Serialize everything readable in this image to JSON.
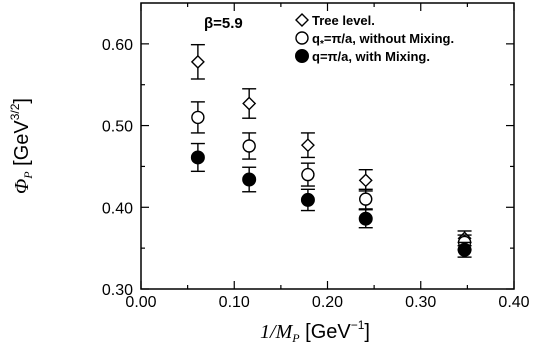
{
  "chart_data": {
    "type": "scatter",
    "title": "",
    "annotation": "β=5.9",
    "xlabel": {
      "main": "1/M",
      "sub": "P",
      "unit_pre": " [GeV",
      "unit_sup": "−1",
      "unit_post": "]"
    },
    "ylabel": {
      "main": "Φ",
      "sub": "P",
      "unit_pre": " [GeV",
      "unit_sup": "3/2",
      "unit_post": "]"
    },
    "xlim": [
      0.0,
      0.4
    ],
    "ylim": [
      0.3,
      0.65
    ],
    "x_ticks": [
      0.0,
      0.1,
      0.2,
      0.3,
      0.4
    ],
    "x_tick_labels": [
      "0.00",
      "0.10",
      "0.20",
      "0.30",
      "0.40"
    ],
    "y_ticks": [
      0.3,
      0.4,
      0.5,
      0.6
    ],
    "y_tick_labels": [
      "0.30",
      "0.40",
      "0.50",
      "0.60"
    ],
    "grid": false,
    "legend_position": "top-right",
    "series": [
      {
        "name": "Tree level.",
        "marker": "open-diamond",
        "points": [
          {
            "x": 0.061,
            "y": 0.578,
            "err": 0.021
          },
          {
            "x": 0.116,
            "y": 0.527,
            "err": 0.018
          },
          {
            "x": 0.179,
            "y": 0.476,
            "err": 0.015
          },
          {
            "x": 0.241,
            "y": 0.433,
            "err": 0.013
          },
          {
            "x": 0.347,
            "y": 0.362,
            "err": 0.009
          }
        ]
      },
      {
        "name": "q*=π/a, without Mixing.",
        "name_parts": [
          "q",
          "*",
          "=π/a, without Mixing."
        ],
        "marker": "open-circle",
        "points": [
          {
            "x": 0.061,
            "y": 0.51,
            "err": 0.019
          },
          {
            "x": 0.116,
            "y": 0.475,
            "err": 0.016
          },
          {
            "x": 0.179,
            "y": 0.44,
            "err": 0.014
          },
          {
            "x": 0.241,
            "y": 0.41,
            "err": 0.012
          },
          {
            "x": 0.347,
            "y": 0.357,
            "err": 0.009
          }
        ]
      },
      {
        "name": "q=π/a, with Mixing.",
        "marker": "filled-circle",
        "points": [
          {
            "x": 0.061,
            "y": 0.461,
            "err": 0.017
          },
          {
            "x": 0.116,
            "y": 0.434,
            "err": 0.015
          },
          {
            "x": 0.179,
            "y": 0.409,
            "err": 0.013
          },
          {
            "x": 0.241,
            "y": 0.386,
            "err": 0.011
          },
          {
            "x": 0.347,
            "y": 0.348,
            "err": 0.009
          }
        ]
      }
    ]
  }
}
